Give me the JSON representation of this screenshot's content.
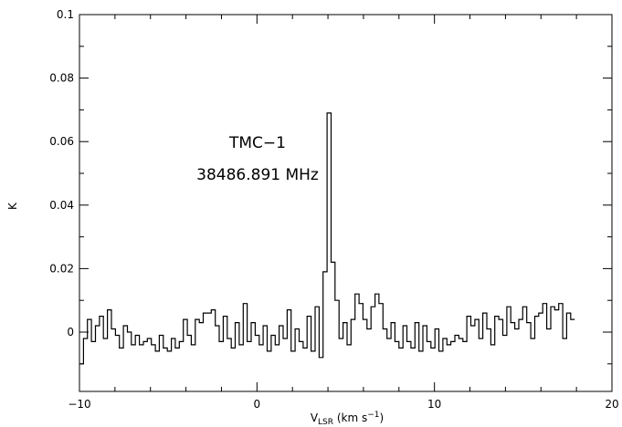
{
  "chart_data": {
    "type": "line",
    "step": true,
    "xlabel_main": "V",
    "xlabel_sub": "LSR",
    "xlabel_units": " (km s",
    "xlabel_sup": "−1",
    "xlabel_close": ")",
    "ylabel": "K",
    "xlim": [
      -10,
      20
    ],
    "ylim": [
      -0.012,
      0.1
    ],
    "x_ticks": [
      -10,
      0,
      10,
      20
    ],
    "x_tick_labels": [
      "−10",
      "0",
      "10",
      "20"
    ],
    "y_ticks": [
      0,
      0.02,
      0.04,
      0.06,
      0.08,
      0.1
    ],
    "y_tick_labels": [
      "0",
      "0.02",
      "0.04",
      "0.06",
      "0.08",
      "0.1"
    ],
    "annotations": [
      "TMC−1",
      "38486.891 MHz"
    ],
    "x_start": -10,
    "bin_width": 0.225,
    "values": [
      -0.01,
      -0.002,
      0.004,
      -0.003,
      0.002,
      0.005,
      -0.002,
      0.007,
      0.001,
      -0.001,
      -0.005,
      0.002,
      0.0,
      -0.004,
      -0.001,
      -0.004,
      -0.003,
      -0.002,
      -0.004,
      -0.006,
      -0.001,
      -0.005,
      -0.006,
      -0.002,
      -0.005,
      -0.003,
      0.004,
      -0.001,
      -0.004,
      0.004,
      0.003,
      0.006,
      0.006,
      0.007,
      0.002,
      -0.003,
      0.005,
      -0.002,
      -0.005,
      0.003,
      -0.004,
      0.009,
      -0.003,
      0.003,
      -0.001,
      -0.004,
      0.002,
      -0.006,
      -0.001,
      -0.004,
      0.002,
      -0.002,
      0.007,
      -0.006,
      0.001,
      -0.003,
      -0.005,
      0.005,
      -0.006,
      0.008,
      -0.008,
      0.019,
      0.069,
      0.022,
      0.01,
      -0.002,
      0.003,
      -0.004,
      0.004,
      0.012,
      0.009,
      0.004,
      0.001,
      0.008,
      0.012,
      0.009,
      0.001,
      -0.002,
      0.003,
      -0.003,
      -0.005,
      0.002,
      -0.003,
      -0.005,
      0.003,
      -0.006,
      0.002,
      -0.003,
      -0.005,
      0.001,
      -0.006,
      -0.002,
      -0.004,
      -0.003,
      -0.001,
      -0.002,
      -0.003,
      0.005,
      0.002,
      0.004,
      -0.002,
      0.006,
      0.001,
      -0.004,
      0.005,
      0.004,
      -0.001,
      0.008,
      0.003,
      0.001,
      0.004,
      0.008,
      0.003,
      -0.002,
      0.005,
      0.006,
      0.009,
      0.001,
      0.008,
      0.007,
      0.009,
      -0.002,
      0.006,
      0.004
    ],
    "grid": false
  }
}
